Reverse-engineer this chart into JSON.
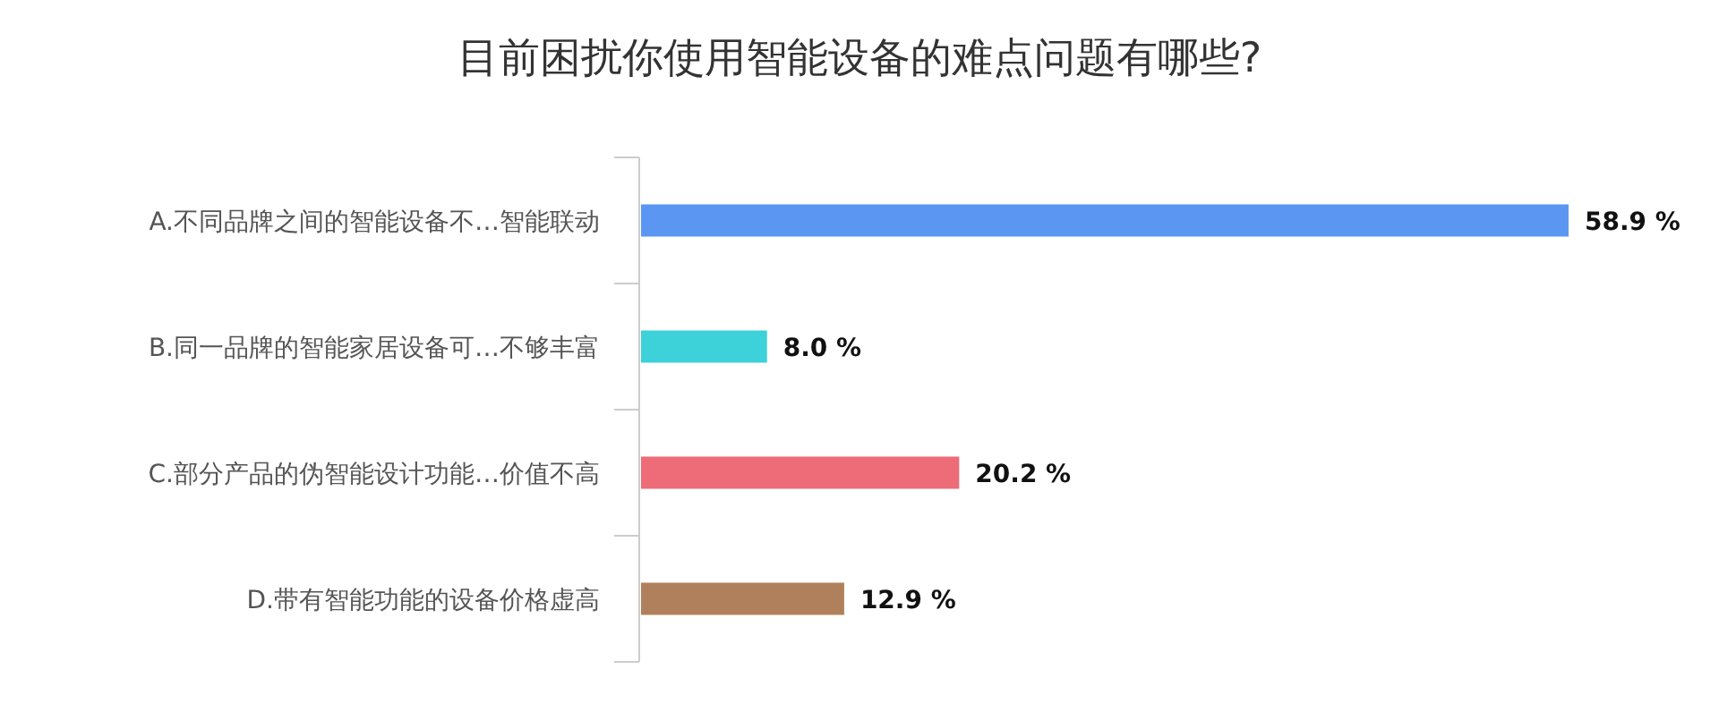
{
  "chart_data": {
    "type": "bar",
    "orientation": "horizontal",
    "title": "目前困扰你使用智能设备的难点问题有哪些?",
    "categories": [
      "A.不同品牌之间的智能设备不…智能联动",
      "B.同一品牌的智能家居设备可…不够丰富",
      "C.部分产品的伪智能设计功能…价值不高",
      "D.带有智能功能的设备价格虚高"
    ],
    "values": [
      58.9,
      8.0,
      20.2,
      12.9
    ],
    "colors": [
      "#5b97f2",
      "#3dd1d9",
      "#ee6b78",
      "#b0805c"
    ],
    "value_labels": [
      "58.9 %",
      "8.0 %",
      "20.2 %",
      "12.9 %"
    ]
  }
}
